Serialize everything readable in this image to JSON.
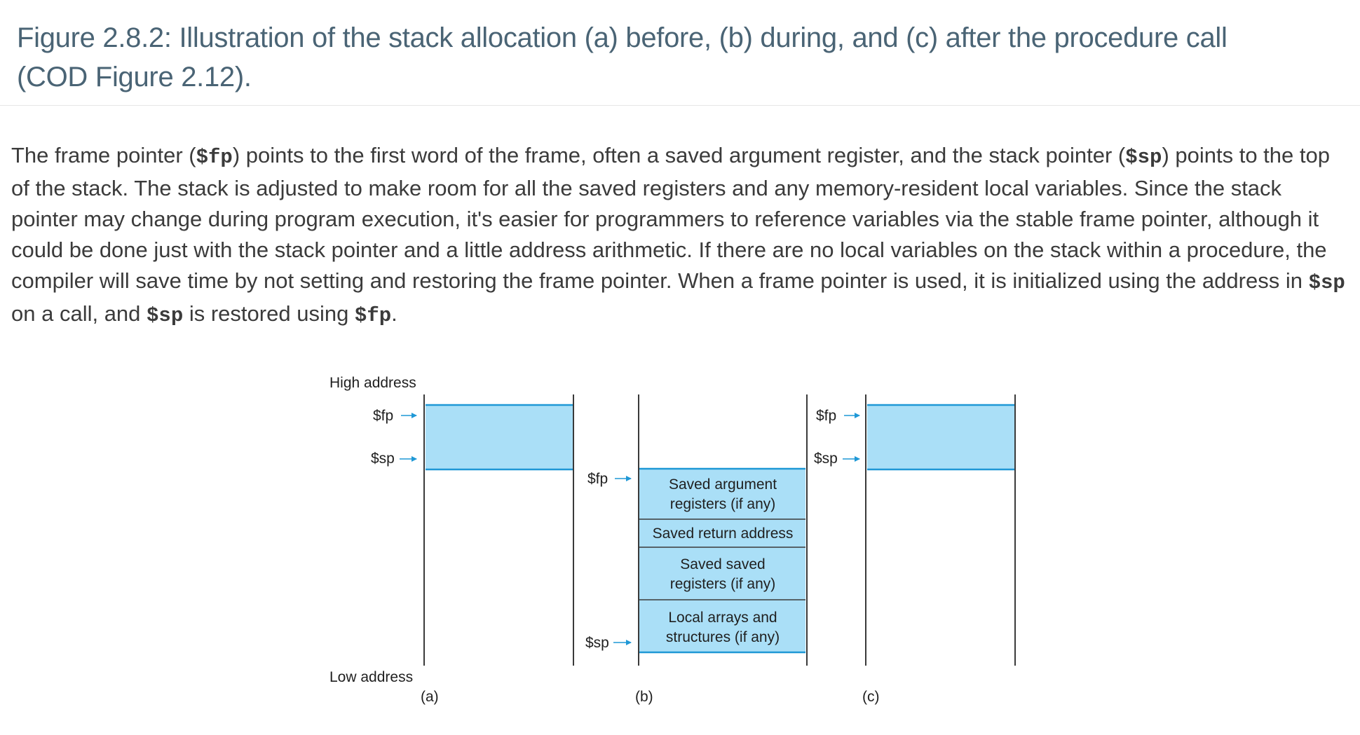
{
  "figure": {
    "title": "Figure 2.8.2: Illustration of the stack allocation (a) before, (b) during, and (c) after the procedure call (COD Figure 2.12)."
  },
  "body": {
    "t1": "The frame pointer (",
    "c1": "$fp",
    "t2": ") points to the first word of the frame, often a saved argument register, and the stack pointer (",
    "c2": "$sp",
    "t3": ") points to the top of the stack. The stack is adjusted to make room for all the saved registers and any memory-resident local variables. Since the stack pointer may change during program execution, it's easier for programmers to reference variables via the stable frame pointer, although it could be done just with the stack pointer and a little address arithmetic. If there are no local variables on the stack within a procedure, the compiler will save time by not setting and restoring the frame pointer. When a frame pointer is used, it is initialized using the address in ",
    "c3": "$sp",
    "t4": " on a call, and ",
    "c4": "$sp",
    "t5": " is restored using ",
    "c5": "$fp",
    "t6": "."
  },
  "diagram": {
    "high_address": "High address",
    "low_address": "Low address",
    "fp": "$fp",
    "sp": "$sp",
    "label_a": "(a)",
    "label_b": "(b)",
    "label_c": "(c)",
    "block_args_1": "Saved argument",
    "block_args_2": "registers (if any)",
    "block_return": "Saved return address",
    "block_saved_1": "Saved saved",
    "block_saved_2": "registers (if any)",
    "block_local_1": "Local arrays and",
    "block_local_2": "structures (if any)",
    "fill_color": "#aadff7",
    "edge_color": "#1f98d6",
    "line_color": "#3a3a3a"
  }
}
